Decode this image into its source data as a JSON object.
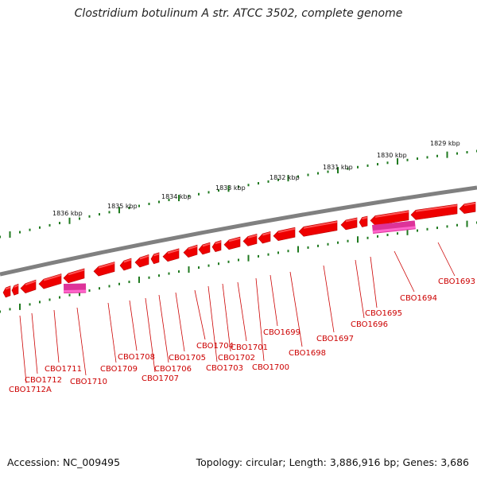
{
  "title": "Clostridium botulinum A str. ATCC 3502, complete genome",
  "footer": {
    "accession": "Accession: NC_009495",
    "summary": "Topology: circular; Length: 3,886,916 bp; Genes: 3,686"
  },
  "colors": {
    "gene": "#ee0000",
    "gene_light": "#ff5555",
    "rna": "#dd3399",
    "backbone": "#808080",
    "tick": "#1f7a1f",
    "label": "#cc0000"
  },
  "ruler_labels": [
    "1829 kbp",
    "1830 kbp",
    "1831 kbp",
    "1832 kbp",
    "1833 kbp",
    "1834 kbp",
    "1835 kbp",
    "1836 kbp"
  ],
  "genes": [
    "CBO1693",
    "CBO1694",
    "CBO1695",
    "CBO1696",
    "CBO1697",
    "CBO1698",
    "CBO1699",
    "CBO1700",
    "CBO1701",
    "CBO1702",
    "CBO1703",
    "CBO1704",
    "CBO1705",
    "CBO1706",
    "CBO1707",
    "CBO1708",
    "CBO1709",
    "CBO1710",
    "CBO1711",
    "CBO1712",
    "CBO1712A"
  ]
}
